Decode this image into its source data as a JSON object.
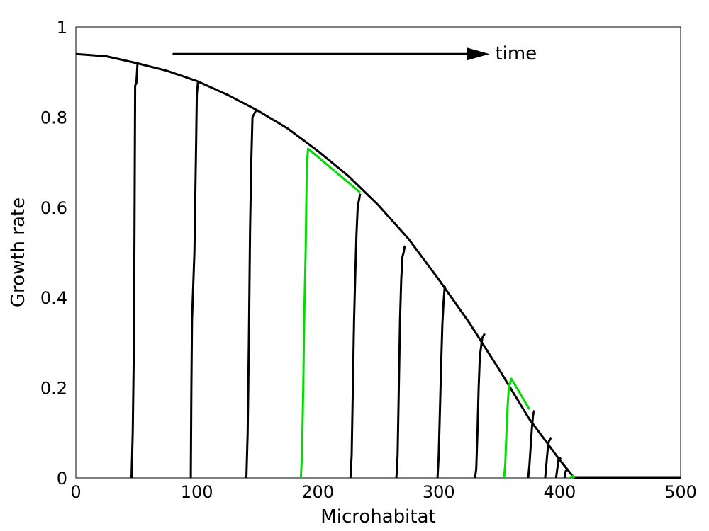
{
  "chart_data": {
    "type": "line",
    "title": "",
    "xlabel": "Microhabitat",
    "ylabel": "Growth rate",
    "xlim": [
      0,
      500
    ],
    "ylim": [
      0,
      1
    ],
    "x_ticks": [
      0,
      100,
      200,
      300,
      400,
      500
    ],
    "y_ticks": [
      0,
      0.2,
      0.4,
      0.6,
      0.8,
      1
    ],
    "x_tick_labels": [
      "0",
      "100",
      "200",
      "300",
      "400",
      "500"
    ],
    "y_tick_labels": [
      "0",
      "0.2",
      "0.4",
      "0.6",
      "0.8",
      "1"
    ],
    "grid": false,
    "annotation": {
      "text": "time",
      "arrow_from": [
        80,
        0.94
      ],
      "arrow_to": [
        342,
        0.94
      ]
    },
    "envelope": {
      "color": "#000000",
      "points": [
        [
          0,
          0.94
        ],
        [
          25,
          0.935
        ],
        [
          50,
          0.92
        ],
        [
          75,
          0.903
        ],
        [
          100,
          0.88
        ],
        [
          125,
          0.85
        ],
        [
          150,
          0.815
        ],
        [
          175,
          0.775
        ],
        [
          200,
          0.725
        ],
        [
          225,
          0.67
        ],
        [
          250,
          0.605
        ],
        [
          275,
          0.53
        ],
        [
          300,
          0.44
        ],
        [
          325,
          0.345
        ],
        [
          350,
          0.24
        ],
        [
          375,
          0.13
        ],
        [
          400,
          0.04
        ],
        [
          412,
          0
        ],
        [
          500,
          0
        ]
      ]
    },
    "series": [
      {
        "color": "#000000",
        "points": [
          [
            46,
            0
          ],
          [
            47,
            0.1
          ],
          [
            48,
            0.3
          ],
          [
            48.5,
            0.55
          ],
          [
            49,
            0.87
          ],
          [
            50,
            0.875
          ],
          [
            51,
            0.92
          ]
        ]
      },
      {
        "color": "#000000",
        "points": [
          [
            95,
            0
          ],
          [
            95.5,
            0.2
          ],
          [
            96,
            0.35
          ],
          [
            98,
            0.5
          ],
          [
            99.5,
            0.75
          ],
          [
            100,
            0.85
          ],
          [
            101,
            0.88
          ]
        ]
      },
      {
        "color": "#000000",
        "points": [
          [
            141,
            0
          ],
          [
            142,
            0.1
          ],
          [
            143,
            0.3
          ],
          [
            144,
            0.55
          ],
          [
            145,
            0.7
          ],
          [
            146,
            0.8
          ],
          [
            149,
            0.815
          ]
        ]
      },
      {
        "color": "#00dd00",
        "points": [
          [
            186,
            0
          ],
          [
            187,
            0.05
          ],
          [
            188,
            0.2
          ],
          [
            189,
            0.38
          ],
          [
            190,
            0.5
          ],
          [
            191,
            0.7
          ],
          [
            192,
            0.73
          ],
          [
            235,
            0.633
          ]
        ]
      },
      {
        "color": "#000000",
        "points": [
          [
            227,
            0
          ],
          [
            228,
            0.05
          ],
          [
            229,
            0.2
          ],
          [
            230,
            0.35
          ],
          [
            231,
            0.45
          ],
          [
            232,
            0.54
          ],
          [
            233,
            0.6
          ],
          [
            235,
            0.63
          ]
        ]
      },
      {
        "color": "#000000",
        "points": [
          [
            265,
            0
          ],
          [
            266,
            0.05
          ],
          [
            267,
            0.2
          ],
          [
            268,
            0.35
          ],
          [
            269,
            0.44
          ],
          [
            270,
            0.49
          ],
          [
            271,
            0.5
          ],
          [
            272,
            0.515
          ]
        ]
      },
      {
        "color": "#000000",
        "points": [
          [
            299,
            0
          ],
          [
            300,
            0.05
          ],
          [
            301,
            0.15
          ],
          [
            302,
            0.25
          ],
          [
            303,
            0.34
          ],
          [
            304,
            0.39
          ],
          [
            305,
            0.425
          ]
        ]
      },
      {
        "color": "#000000",
        "points": [
          [
            330,
            0
          ],
          [
            331,
            0.02
          ],
          [
            332,
            0.1
          ],
          [
            333,
            0.2
          ],
          [
            334,
            0.27
          ],
          [
            336,
            0.31
          ],
          [
            338,
            0.32
          ]
        ]
      },
      {
        "color": "#00dd00",
        "points": [
          [
            354,
            0
          ],
          [
            355,
            0.03
          ],
          [
            356,
            0.1
          ],
          [
            357,
            0.16
          ],
          [
            358,
            0.2
          ],
          [
            360,
            0.22
          ],
          [
            375,
            0.152
          ]
        ]
      },
      {
        "color": "#000000",
        "points": [
          [
            374,
            0
          ],
          [
            375,
            0.03
          ],
          [
            376,
            0.07
          ],
          [
            377,
            0.11
          ],
          [
            378,
            0.14
          ],
          [
            379,
            0.15
          ]
        ]
      },
      {
        "color": "#000000",
        "points": [
          [
            388,
            0
          ],
          [
            389,
            0.03
          ],
          [
            390,
            0.06
          ],
          [
            391,
            0.08
          ],
          [
            393,
            0.09
          ]
        ]
      },
      {
        "color": "#000000",
        "points": [
          [
            397,
            0
          ],
          [
            398,
            0.02
          ],
          [
            399,
            0.04
          ],
          [
            401,
            0.045
          ]
        ]
      },
      {
        "color": "#000000",
        "points": [
          [
            404,
            0
          ],
          [
            405,
            0.015
          ],
          [
            407,
            0.02
          ]
        ]
      },
      {
        "color": "#00dd00",
        "points": [
          [
            409,
            0
          ],
          [
            411,
            0.005
          ],
          [
            412,
            0
          ]
        ]
      }
    ]
  }
}
